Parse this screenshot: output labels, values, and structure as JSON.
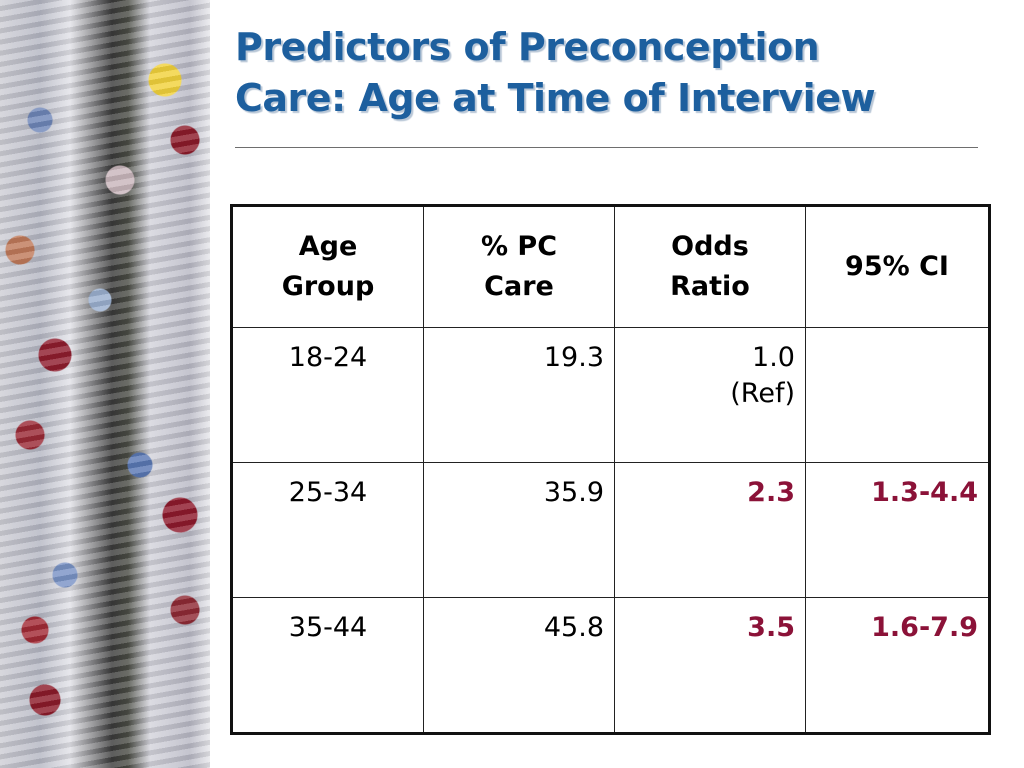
{
  "slide": {
    "title_line1": "Predictors of Preconception",
    "title_line2": "Care: Age at Time of Interview",
    "accent_color": "#1d5f9e",
    "highlight_color": "#8b1238"
  },
  "table": {
    "headers": [
      "Age Group",
      "% PC Care",
      "Odds Ratio",
      "95% CI"
    ],
    "rows": [
      {
        "age": "18-24",
        "pc": "19.3",
        "or": "1.0 (Ref)",
        "ci": ""
      },
      {
        "age": "25-34",
        "pc": "35.9",
        "or": "2.3",
        "ci": "1.3-4.4"
      },
      {
        "age": "35-44",
        "pc": "45.8",
        "or": "3.5",
        "ci": "1.6-7.9"
      }
    ]
  }
}
